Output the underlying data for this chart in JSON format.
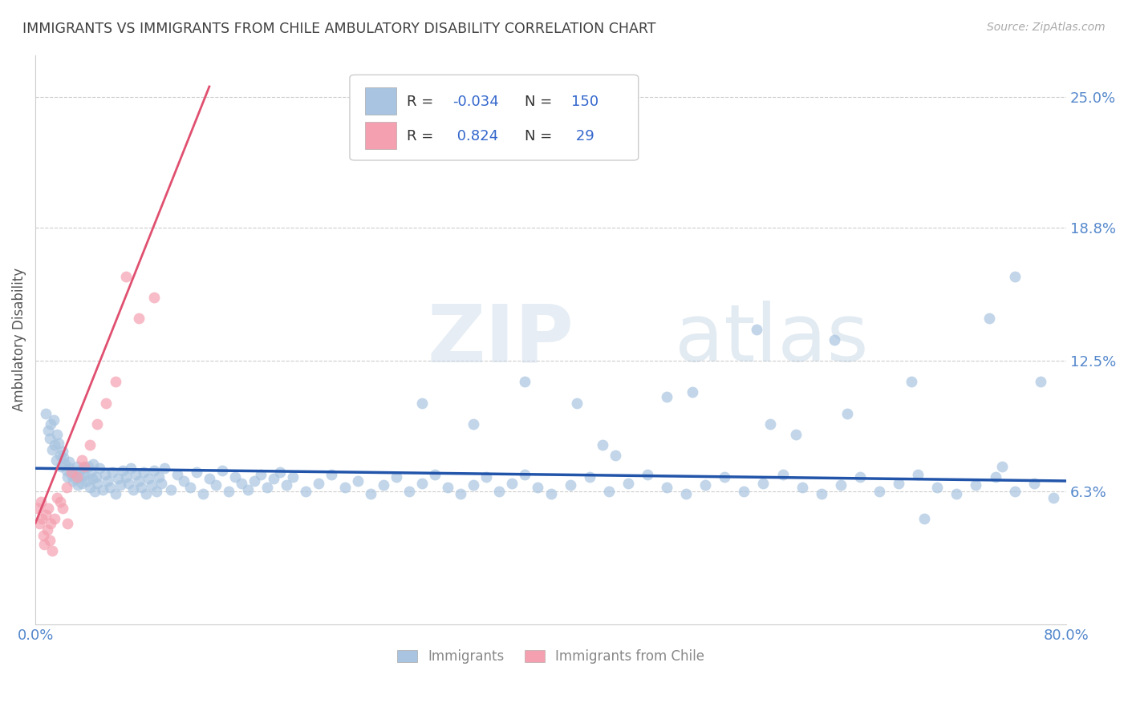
{
  "title": "IMMIGRANTS VS IMMIGRANTS FROM CHILE AMBULATORY DISABILITY CORRELATION CHART",
  "source_text": "Source: ZipAtlas.com",
  "ylabel": "Ambulatory Disability",
  "xlim": [
    0.0,
    0.8
  ],
  "ylim": [
    0.0,
    0.27
  ],
  "yticks": [
    0.063,
    0.125,
    0.188,
    0.25
  ],
  "ytick_labels": [
    "6.3%",
    "12.5%",
    "18.8%",
    "25.0%"
  ],
  "blue_R": -0.034,
  "blue_N": 150,
  "pink_R": 0.824,
  "pink_N": 29,
  "blue_color": "#a8c4e0",
  "pink_color": "#f4a0b0",
  "blue_line_color": "#2255aa",
  "pink_line_color": "#e05070",
  "title_color": "#404040",
  "tick_label_color": "#5588cc",
  "background_color": "#ffffff",
  "legend_label_blue": "Immigrants",
  "legend_label_pink": "Immigrants from Chile",
  "blue_line_x0": 0.0,
  "blue_line_y0": 0.074,
  "blue_line_x1": 0.8,
  "blue_line_y1": 0.068,
  "pink_line_x0": 0.0,
  "pink_line_y0": 0.048,
  "pink_line_x1": 0.135,
  "pink_line_y1": 0.255,
  "blue_scatter_x": [
    0.008,
    0.01,
    0.011,
    0.012,
    0.013,
    0.014,
    0.015,
    0.016,
    0.017,
    0.018,
    0.019,
    0.02,
    0.021,
    0.022,
    0.023,
    0.024,
    0.025,
    0.026,
    0.027,
    0.028,
    0.029,
    0.03,
    0.031,
    0.032,
    0.033,
    0.034,
    0.035,
    0.036,
    0.037,
    0.038,
    0.04,
    0.041,
    0.042,
    0.043,
    0.044,
    0.045,
    0.046,
    0.047,
    0.048,
    0.05,
    0.052,
    0.054,
    0.056,
    0.058,
    0.06,
    0.062,
    0.064,
    0.066,
    0.068,
    0.07,
    0.072,
    0.074,
    0.076,
    0.078,
    0.08,
    0.082,
    0.084,
    0.086,
    0.088,
    0.09,
    0.092,
    0.094,
    0.096,
    0.098,
    0.1,
    0.105,
    0.11,
    0.115,
    0.12,
    0.125,
    0.13,
    0.135,
    0.14,
    0.145,
    0.15,
    0.155,
    0.16,
    0.165,
    0.17,
    0.175,
    0.18,
    0.185,
    0.19,
    0.195,
    0.2,
    0.21,
    0.22,
    0.23,
    0.24,
    0.25,
    0.26,
    0.27,
    0.28,
    0.29,
    0.3,
    0.31,
    0.32,
    0.33,
    0.34,
    0.35,
    0.36,
    0.37,
    0.38,
    0.39,
    0.4,
    0.415,
    0.43,
    0.445,
    0.46,
    0.475,
    0.49,
    0.505,
    0.52,
    0.535,
    0.55,
    0.565,
    0.58,
    0.595,
    0.61,
    0.625,
    0.64,
    0.655,
    0.67,
    0.685,
    0.7,
    0.715,
    0.73,
    0.745,
    0.76,
    0.775,
    0.51,
    0.49,
    0.56,
    0.62,
    0.68,
    0.74,
    0.76,
    0.78,
    0.59,
    0.45,
    0.42,
    0.38,
    0.34,
    0.3,
    0.44,
    0.57,
    0.63,
    0.69,
    0.75,
    0.79
  ],
  "blue_scatter_y": [
    0.1,
    0.092,
    0.088,
    0.095,
    0.083,
    0.097,
    0.085,
    0.078,
    0.09,
    0.086,
    0.08,
    0.075,
    0.082,
    0.079,
    0.076,
    0.073,
    0.07,
    0.077,
    0.074,
    0.071,
    0.068,
    0.072,
    0.069,
    0.075,
    0.066,
    0.073,
    0.07,
    0.067,
    0.074,
    0.071,
    0.068,
    0.075,
    0.065,
    0.072,
    0.069,
    0.076,
    0.063,
    0.07,
    0.067,
    0.074,
    0.064,
    0.071,
    0.068,
    0.065,
    0.072,
    0.062,
    0.069,
    0.066,
    0.073,
    0.07,
    0.067,
    0.074,
    0.064,
    0.071,
    0.068,
    0.065,
    0.072,
    0.062,
    0.069,
    0.066,
    0.073,
    0.063,
    0.07,
    0.067,
    0.074,
    0.064,
    0.071,
    0.068,
    0.065,
    0.072,
    0.062,
    0.069,
    0.066,
    0.073,
    0.063,
    0.07,
    0.067,
    0.064,
    0.068,
    0.071,
    0.065,
    0.069,
    0.072,
    0.066,
    0.07,
    0.063,
    0.067,
    0.071,
    0.065,
    0.068,
    0.062,
    0.066,
    0.07,
    0.063,
    0.067,
    0.071,
    0.065,
    0.062,
    0.066,
    0.07,
    0.063,
    0.067,
    0.071,
    0.065,
    0.062,
    0.066,
    0.07,
    0.063,
    0.067,
    0.071,
    0.065,
    0.062,
    0.066,
    0.07,
    0.063,
    0.067,
    0.071,
    0.065,
    0.062,
    0.066,
    0.07,
    0.063,
    0.067,
    0.071,
    0.065,
    0.062,
    0.066,
    0.07,
    0.063,
    0.067,
    0.11,
    0.108,
    0.14,
    0.135,
    0.115,
    0.145,
    0.165,
    0.115,
    0.09,
    0.08,
    0.105,
    0.115,
    0.095,
    0.105,
    0.085,
    0.095,
    0.1,
    0.05,
    0.075,
    0.06
  ],
  "pink_scatter_x": [
    0.002,
    0.003,
    0.004,
    0.005,
    0.006,
    0.007,
    0.008,
    0.009,
    0.01,
    0.011,
    0.012,
    0.013,
    0.015,
    0.017,
    0.019,
    0.021,
    0.024,
    0.028,
    0.032,
    0.036,
    0.042,
    0.048,
    0.055,
    0.062,
    0.07,
    0.08,
    0.092,
    0.038,
    0.025
  ],
  "pink_scatter_y": [
    0.055,
    0.048,
    0.058,
    0.05,
    0.042,
    0.038,
    0.052,
    0.045,
    0.055,
    0.04,
    0.048,
    0.035,
    0.05,
    0.06,
    0.058,
    0.055,
    0.065,
    0.072,
    0.07,
    0.078,
    0.085,
    0.095,
    0.105,
    0.115,
    0.165,
    0.145,
    0.155,
    0.075,
    0.048
  ]
}
